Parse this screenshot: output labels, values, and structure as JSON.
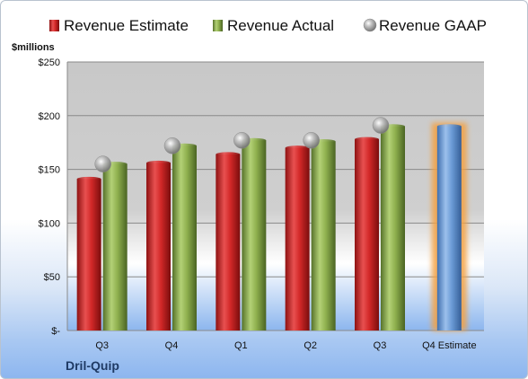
{
  "company": "Dril-Quip",
  "chart_data": {
    "type": "bar",
    "ylabel": "$millions",
    "ylim": [
      0,
      250
    ],
    "y_ticks": [
      0,
      50,
      100,
      150,
      200,
      250
    ],
    "y_tick_labels": [
      "$-",
      "$50",
      "$100",
      "$150",
      "$200",
      "$250"
    ],
    "categories": [
      "Q3",
      "Q4",
      "Q1",
      "Q2",
      "Q3",
      "Q4 Estimate"
    ],
    "legend_position": "top",
    "series": [
      {
        "name": "Revenue Estimate",
        "color": "#cf2a2a",
        "values": [
          141,
          156,
          164,
          170,
          178,
          null
        ]
      },
      {
        "name": "Revenue Actual",
        "color": "#8fb04e",
        "values": [
          155,
          172,
          177,
          176,
          190,
          null
        ]
      },
      {
        "name": "Revenue GAAP",
        "color": "#a6a6a6",
        "marker": "sphere",
        "values": [
          155,
          172,
          177,
          177,
          191,
          null
        ]
      },
      {
        "name": "",
        "color": "#6b9bd6",
        "highlight": "orange glow",
        "values": [
          null,
          null,
          null,
          null,
          null,
          190
        ]
      }
    ]
  }
}
